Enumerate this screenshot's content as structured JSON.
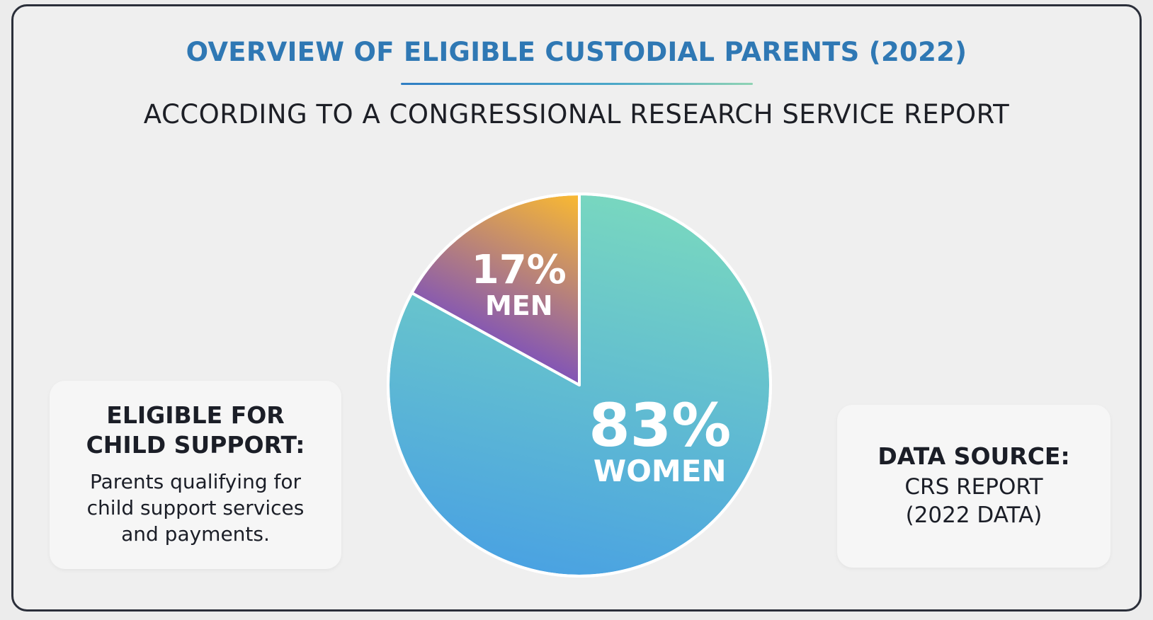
{
  "header": {
    "title": "OVERVIEW OF ELIGIBLE CUSTODIAL PARENTS (2022)",
    "subtitle": "ACCORDING TO A CONGRESSIONAL RESEARCH SERVICE REPORT"
  },
  "left_card": {
    "heading_line1": "ELIGIBLE FOR",
    "heading_line2": "CHILD SUPPORT:",
    "body_line1": "Parents qualifying for",
    "body_line2": "child support services",
    "body_line3": "and payments."
  },
  "right_card": {
    "heading": "DATA SOURCE:",
    "body_line1": "CRS REPORT",
    "body_line2": "(2022 DATA)"
  },
  "chart_data": {
    "type": "pie",
    "title": "OVERVIEW OF ELIGIBLE CUSTODIAL PARENTS (2022)",
    "subtitle": "ACCORDING TO A CONGRESSIONAL RESEARCH SERVICE REPORT",
    "slices": [
      {
        "label": "WOMEN",
        "value": 83,
        "display": "83%",
        "color_start": "#79d8bf",
        "color_end": "#4aa2e2"
      },
      {
        "label": "MEN",
        "value": 17,
        "display": "17%",
        "color_start": "#f8b833",
        "color_end": "#7a4ebf"
      }
    ],
    "start_angle_deg": 0,
    "direction": "clockwise",
    "legend": "none"
  }
}
